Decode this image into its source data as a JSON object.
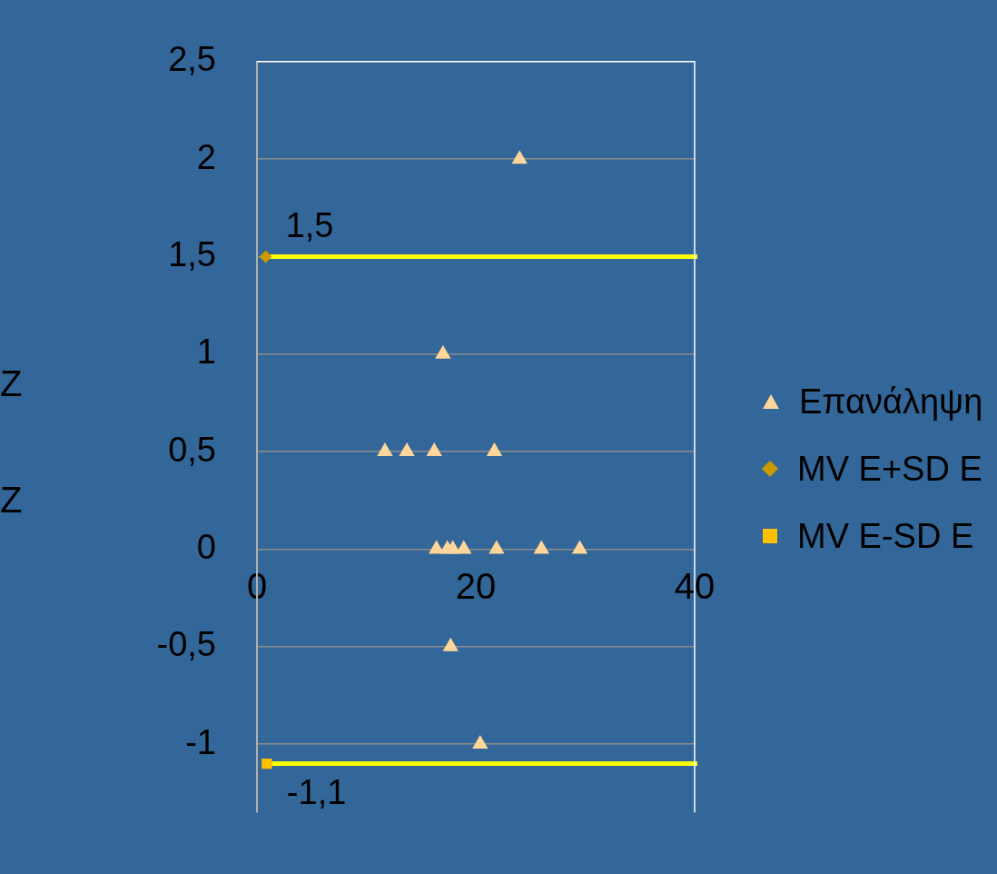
{
  "chart_data": {
    "type": "scatter",
    "annotations": [
      "Z",
      "Z"
    ],
    "series": [
      {
        "name": "Επανάληψη",
        "color": "#ffd699",
        "marker": "triangle",
        "x": [
          24,
          17,
          11.7,
          13.7,
          16.2,
          21.7,
          16.4,
          17.4,
          17.9,
          18.9,
          21.9,
          26,
          29.5,
          17.7,
          20.4
        ],
        "values": [
          2,
          1,
          0.5,
          0.5,
          0.5,
          0.5,
          0,
          0,
          0,
          0,
          0,
          0,
          0,
          -0.5,
          -1
        ]
      },
      {
        "name": "MV E+SD E",
        "color": "#cc9900",
        "marker": "diamond",
        "x": [
          0.8
        ],
        "values": [
          1.5
        ],
        "value_labels": [
          "1,5"
        ]
      },
      {
        "name": "MV E-SD E",
        "color": "#ffc000",
        "marker": "square",
        "x": [
          0.9
        ],
        "values": [
          -1.1
        ],
        "value_labels": [
          "-1,1"
        ]
      }
    ],
    "xlim": [
      0,
      40
    ],
    "xticks": [
      0,
      20,
      40
    ],
    "ylim": [
      -1.35,
      2.5
    ],
    "yticks": [
      {
        "value": 2.5,
        "label": "2,5"
      },
      2,
      {
        "value": 1.5,
        "label": "1,5"
      },
      1,
      {
        "value": 0.5,
        "label": "0,5"
      },
      0,
      {
        "value": -0.5,
        "label": "-0,5"
      },
      -1
    ],
    "ref_lines": [
      {
        "axis": "y",
        "value": 1.5,
        "color": "#ffff00"
      },
      {
        "axis": "y",
        "value": -1.1,
        "color": "#ffff00"
      }
    ],
    "grid": "y",
    "legend": "right"
  }
}
